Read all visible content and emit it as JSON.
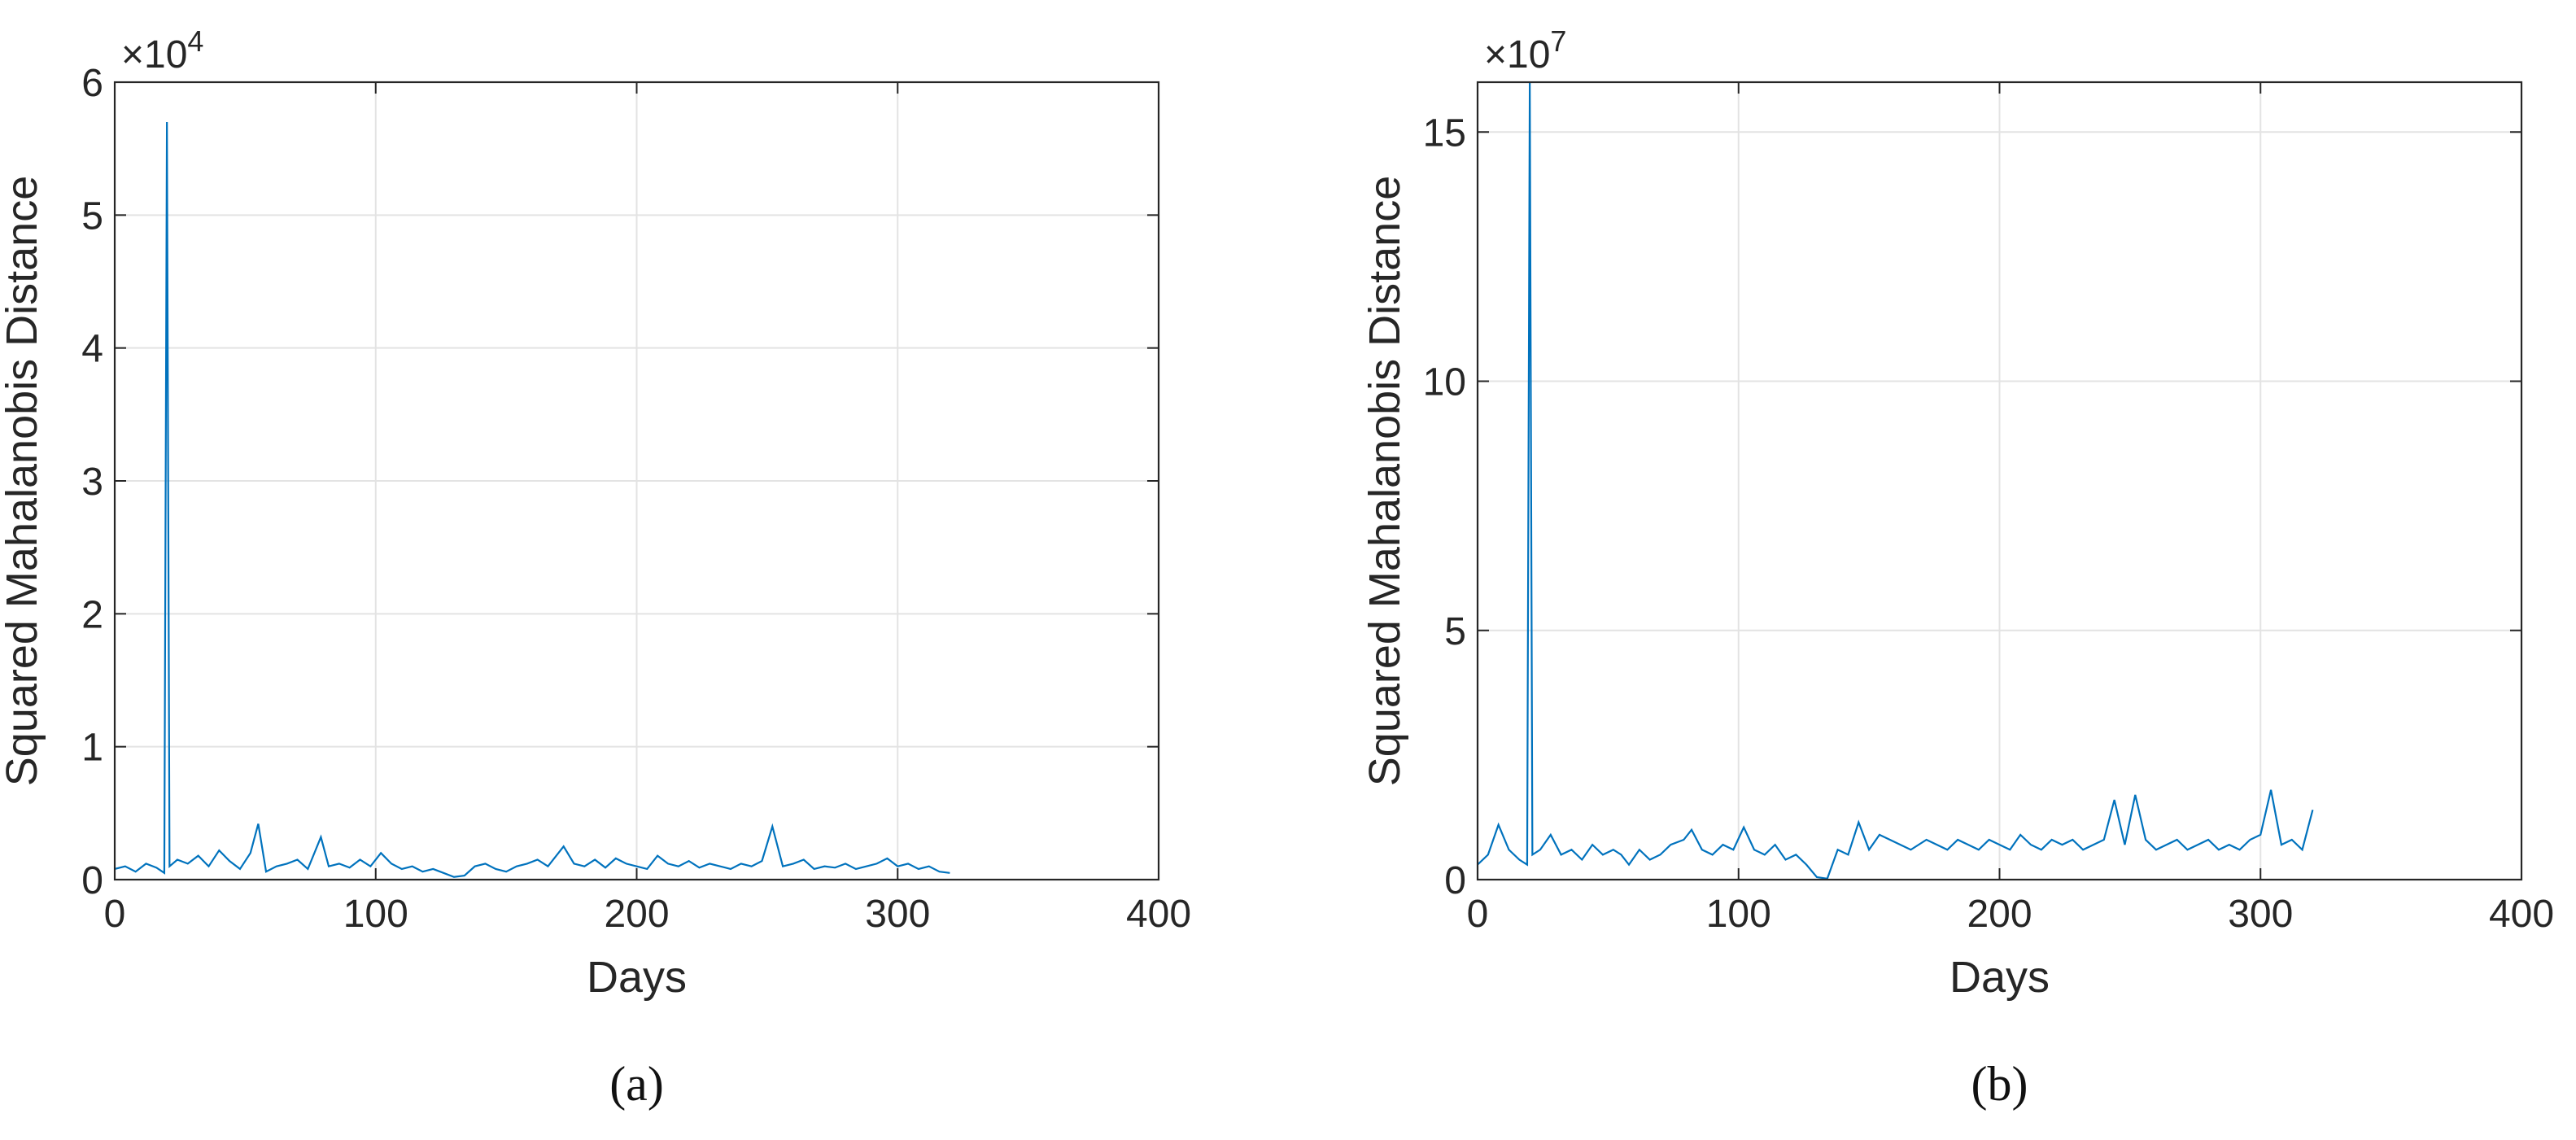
{
  "chart_data": [
    {
      "type": "line",
      "panel_label": "(a)",
      "x_label": "Days",
      "y_label": "Squared Mahalanobis Distance",
      "y_scale_base": "×10",
      "y_scale_power": "4",
      "color": "#0072bd",
      "grid": true,
      "xlim": [
        0,
        400
      ],
      "xticks": [
        0,
        100,
        200,
        300,
        400
      ],
      "ylim": [
        0,
        6
      ],
      "yticks": [
        0,
        1,
        2,
        3,
        4,
        5,
        6
      ],
      "x": [
        0,
        4,
        8,
        12,
        16,
        19,
        20,
        21,
        24,
        28,
        32,
        36,
        40,
        44,
        48,
        52,
        55,
        58,
        62,
        66,
        70,
        74,
        79,
        82,
        86,
        90,
        94,
        98,
        102,
        106,
        110,
        114,
        118,
        122,
        126,
        130,
        134,
        138,
        142,
        146,
        150,
        154,
        158,
        162,
        166,
        172,
        176,
        180,
        184,
        188,
        192,
        196,
        200,
        204,
        208,
        212,
        216,
        220,
        224,
        228,
        232,
        236,
        240,
        244,
        248,
        252,
        256,
        260,
        264,
        268,
        272,
        276,
        280,
        284,
        288,
        292,
        296,
        300,
        304,
        308,
        312,
        316,
        320
      ],
      "values": [
        0.08,
        0.1,
        0.06,
        0.12,
        0.09,
        0.05,
        5.7,
        0.1,
        0.15,
        0.12,
        0.18,
        0.1,
        0.22,
        0.14,
        0.08,
        0.2,
        0.42,
        0.06,
        0.1,
        0.12,
        0.15,
        0.08,
        0.32,
        0.1,
        0.12,
        0.09,
        0.15,
        0.1,
        0.2,
        0.12,
        0.08,
        0.1,
        0.06,
        0.08,
        0.05,
        0.02,
        0.03,
        0.1,
        0.12,
        0.08,
        0.06,
        0.1,
        0.12,
        0.15,
        0.1,
        0.25,
        0.12,
        0.1,
        0.15,
        0.09,
        0.16,
        0.12,
        0.1,
        0.08,
        0.18,
        0.12,
        0.1,
        0.14,
        0.09,
        0.12,
        0.1,
        0.08,
        0.12,
        0.1,
        0.14,
        0.4,
        0.1,
        0.12,
        0.15,
        0.08,
        0.1,
        0.09,
        0.12,
        0.08,
        0.1,
        0.12,
        0.16,
        0.1,
        0.12,
        0.08,
        0.1,
        0.06,
        0.05
      ]
    },
    {
      "type": "line",
      "panel_label": "(b)",
      "x_label": "Days",
      "y_label": "Squared Mahalanobis Distance",
      "y_scale_base": "×10",
      "y_scale_power": "7",
      "color": "#0072bd",
      "grid": true,
      "xlim": [
        0,
        400
      ],
      "xticks": [
        0,
        100,
        200,
        300,
        400
      ],
      "ylim": [
        0,
        16
      ],
      "yticks": [
        0,
        5,
        10,
        15
      ],
      "x": [
        0,
        4,
        8,
        12,
        16,
        19,
        20,
        21,
        24,
        28,
        32,
        36,
        40,
        44,
        48,
        52,
        55,
        58,
        62,
        66,
        70,
        74,
        79,
        82,
        86,
        90,
        94,
        98,
        102,
        106,
        110,
        114,
        118,
        122,
        126,
        130,
        134,
        138,
        142,
        146,
        150,
        154,
        158,
        162,
        166,
        172,
        176,
        180,
        184,
        188,
        192,
        196,
        200,
        204,
        208,
        212,
        216,
        220,
        224,
        228,
        232,
        236,
        240,
        244,
        248,
        252,
        256,
        260,
        264,
        268,
        272,
        276,
        280,
        284,
        288,
        292,
        296,
        300,
        304,
        308,
        312,
        316,
        320
      ],
      "values": [
        0.3,
        0.5,
        1.1,
        0.6,
        0.4,
        0.3,
        16,
        0.5,
        0.6,
        0.9,
        0.5,
        0.6,
        0.4,
        0.7,
        0.5,
        0.6,
        0.5,
        0.3,
        0.6,
        0.4,
        0.5,
        0.7,
        0.8,
        1.0,
        0.6,
        0.5,
        0.7,
        0.6,
        1.05,
        0.6,
        0.5,
        0.7,
        0.4,
        0.5,
        0.3,
        0.05,
        0.02,
        0.6,
        0.5,
        1.15,
        0.6,
        0.9,
        0.8,
        0.7,
        0.6,
        0.8,
        0.7,
        0.6,
        0.8,
        0.7,
        0.6,
        0.8,
        0.7,
        0.6,
        0.9,
        0.7,
        0.6,
        0.8,
        0.7,
        0.8,
        0.6,
        0.7,
        0.8,
        1.6,
        0.7,
        1.7,
        0.8,
        0.6,
        0.7,
        0.8,
        0.6,
        0.7,
        0.8,
        0.6,
        0.7,
        0.6,
        0.8,
        0.9,
        1.8,
        0.7,
        0.8,
        0.6,
        1.4
      ]
    }
  ]
}
